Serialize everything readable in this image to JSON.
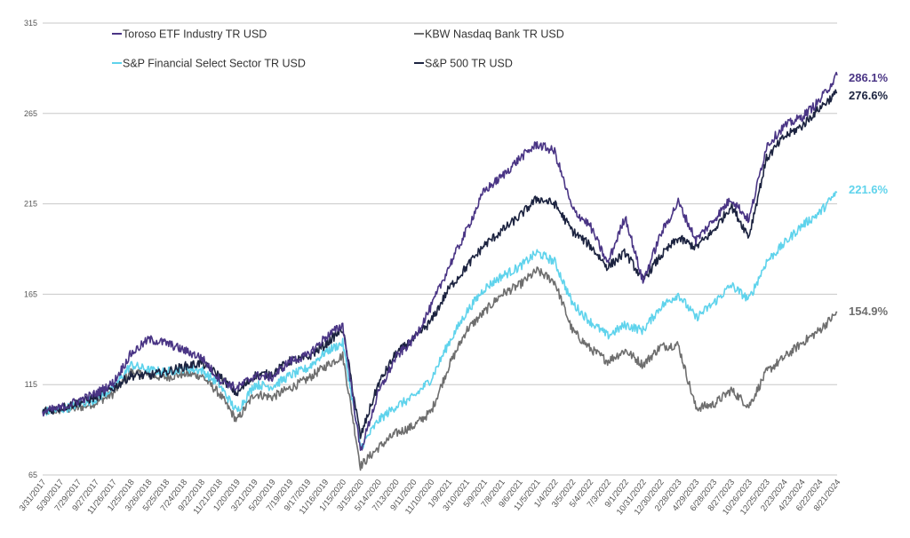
{
  "chart_data": {
    "type": "line",
    "title": "",
    "xlabel": "",
    "ylabel": "",
    "ylim": [
      65,
      315
    ],
    "y_ticks": [
      65,
      115,
      165,
      215,
      265,
      315
    ],
    "grid": true,
    "legend_position": "top-left",
    "x_tick_labels": [
      "3/31/2017",
      "5/30/2017",
      "7/29/2017",
      "9/27/2017",
      "11/26/2017",
      "1/25/2018",
      "3/26/2018",
      "5/25/2018",
      "7/24/2018",
      "9/22/2018",
      "11/21/2018",
      "1/20/2019",
      "3/21/2019",
      "5/20/2019",
      "7/19/2019",
      "9/17/2019",
      "11/16/2019",
      "1/15/2020",
      "3/15/2020",
      "5/14/2020",
      "7/13/2020",
      "9/11/2020",
      "11/10/2020",
      "1/9/2021",
      "3/10/2021",
      "5/9/2021",
      "7/8/2021",
      "9/6/2021",
      "11/5/2021",
      "1/4/2022",
      "3/5/2022",
      "5/4/2022",
      "7/3/2022",
      "9/1/2022",
      "10/31/2022",
      "12/30/2022",
      "2/28/2023",
      "4/29/2023",
      "6/28/2023",
      "8/27/2023",
      "10/26/2023",
      "12/25/2023",
      "2/23/2024",
      "4/23/2024",
      "6/22/2024",
      "8/21/2024"
    ],
    "series": [
      {
        "name": "Toroso ETF Industry TR USD",
        "color": "#4a3585",
        "end_label": "286.1%",
        "points": [
          [
            0,
            100
          ],
          [
            1,
            102
          ],
          [
            2,
            106
          ],
          [
            3,
            110
          ],
          [
            4,
            116
          ],
          [
            5,
            132
          ],
          [
            6,
            140
          ],
          [
            7,
            138
          ],
          [
            8,
            134
          ],
          [
            9,
            130
          ],
          [
            10,
            118
          ],
          [
            11,
            113
          ],
          [
            12,
            120
          ],
          [
            13,
            119
          ],
          [
            14,
            128
          ],
          [
            15,
            131
          ],
          [
            16,
            141
          ],
          [
            17,
            148
          ],
          [
            18,
            78
          ],
          [
            19,
            110
          ],
          [
            20,
            130
          ],
          [
            21,
            140
          ],
          [
            22,
            158
          ],
          [
            23,
            180
          ],
          [
            24,
            200
          ],
          [
            25,
            222
          ],
          [
            26,
            230
          ],
          [
            27,
            240
          ],
          [
            28,
            248
          ],
          [
            29,
            244
          ],
          [
            30,
            212
          ],
          [
            31,
            203
          ],
          [
            32,
            182
          ],
          [
            33,
            208
          ],
          [
            34,
            172
          ],
          [
            35,
            198
          ],
          [
            36,
            216
          ],
          [
            37,
            195
          ],
          [
            38,
            206
          ],
          [
            39,
            218
          ],
          [
            40,
            206
          ],
          [
            41,
            247
          ],
          [
            42,
            258
          ],
          [
            43,
            263
          ],
          [
            44,
            272
          ],
          [
            45,
            286.1
          ]
        ]
      },
      {
        "name": "S&P 500 TR USD",
        "color": "#1c2340",
        "end_label": "276.6%",
        "points": [
          [
            0,
            100
          ],
          [
            1,
            102
          ],
          [
            2,
            105
          ],
          [
            3,
            108
          ],
          [
            4,
            113
          ],
          [
            5,
            120
          ],
          [
            6,
            120
          ],
          [
            7,
            122
          ],
          [
            8,
            125
          ],
          [
            9,
            127
          ],
          [
            10,
            120
          ],
          [
            11,
            110
          ],
          [
            12,
            120
          ],
          [
            13,
            121
          ],
          [
            14,
            128
          ],
          [
            15,
            130
          ],
          [
            16,
            137
          ],
          [
            17,
            146
          ],
          [
            18,
            86
          ],
          [
            19,
            115
          ],
          [
            20,
            132
          ],
          [
            21,
            140
          ],
          [
            22,
            150
          ],
          [
            23,
            168
          ],
          [
            24,
            180
          ],
          [
            25,
            192
          ],
          [
            26,
            200
          ],
          [
            27,
            208
          ],
          [
            28,
            218
          ],
          [
            29,
            215
          ],
          [
            30,
            200
          ],
          [
            31,
            192
          ],
          [
            32,
            180
          ],
          [
            33,
            188
          ],
          [
            34,
            173
          ],
          [
            35,
            186
          ],
          [
            36,
            196
          ],
          [
            37,
            191
          ],
          [
            38,
            200
          ],
          [
            39,
            214
          ],
          [
            40,
            197
          ],
          [
            41,
            240
          ],
          [
            42,
            252
          ],
          [
            43,
            258
          ],
          [
            44,
            268
          ],
          [
            45,
            276.6
          ]
        ]
      },
      {
        "name": "S&P Financial Select Sector TR USD",
        "color": "#5fd3ec",
        "end_label": "221.6%",
        "points": [
          [
            0,
            100
          ],
          [
            1,
            101
          ],
          [
            2,
            104
          ],
          [
            3,
            107
          ],
          [
            4,
            113
          ],
          [
            5,
            126
          ],
          [
            6,
            123
          ],
          [
            7,
            122
          ],
          [
            8,
            124
          ],
          [
            9,
            123
          ],
          [
            10,
            115
          ],
          [
            11,
            100
          ],
          [
            12,
            115
          ],
          [
            13,
            114
          ],
          [
            14,
            120
          ],
          [
            15,
            124
          ],
          [
            16,
            133
          ],
          [
            17,
            138
          ],
          [
            18,
            80
          ],
          [
            19,
            95
          ],
          [
            20,
            103
          ],
          [
            21,
            108
          ],
          [
            22,
            118
          ],
          [
            23,
            138
          ],
          [
            24,
            155
          ],
          [
            25,
            168
          ],
          [
            26,
            175
          ],
          [
            27,
            180
          ],
          [
            28,
            188
          ],
          [
            29,
            183
          ],
          [
            30,
            160
          ],
          [
            31,
            150
          ],
          [
            32,
            142
          ],
          [
            33,
            148
          ],
          [
            34,
            145
          ],
          [
            35,
            158
          ],
          [
            36,
            165
          ],
          [
            37,
            152
          ],
          [
            38,
            160
          ],
          [
            39,
            170
          ],
          [
            40,
            162
          ],
          [
            41,
            183
          ],
          [
            42,
            193
          ],
          [
            43,
            203
          ],
          [
            44,
            210
          ],
          [
            45,
            221.6
          ]
        ]
      },
      {
        "name": "KBW Nasdaq Bank TR USD",
        "color": "#6e6e6e",
        "end_label": "154.9%",
        "points": [
          [
            0,
            100
          ],
          [
            1,
            101
          ],
          [
            2,
            102
          ],
          [
            3,
            105
          ],
          [
            4,
            110
          ],
          [
            5,
            122
          ],
          [
            6,
            120
          ],
          [
            7,
            119
          ],
          [
            8,
            121
          ],
          [
            9,
            120
          ],
          [
            10,
            110
          ],
          [
            11,
            95
          ],
          [
            12,
            110
          ],
          [
            13,
            108
          ],
          [
            14,
            113
          ],
          [
            15,
            118
          ],
          [
            16,
            125
          ],
          [
            17,
            131
          ],
          [
            18,
            70
          ],
          [
            19,
            80
          ],
          [
            20,
            88
          ],
          [
            21,
            92
          ],
          [
            22,
            100
          ],
          [
            23,
            125
          ],
          [
            24,
            145
          ],
          [
            25,
            155
          ],
          [
            26,
            165
          ],
          [
            27,
            170
          ],
          [
            28,
            178
          ],
          [
            29,
            172
          ],
          [
            30,
            145
          ],
          [
            31,
            135
          ],
          [
            32,
            128
          ],
          [
            33,
            134
          ],
          [
            34,
            126
          ],
          [
            35,
            136
          ],
          [
            36,
            137
          ],
          [
            37,
            102
          ],
          [
            38,
            104
          ],
          [
            39,
            112
          ],
          [
            40,
            103
          ],
          [
            41,
            122
          ],
          [
            42,
            130
          ],
          [
            43,
            138
          ],
          [
            44,
            145
          ],
          [
            45,
            154.9
          ]
        ]
      }
    ]
  }
}
